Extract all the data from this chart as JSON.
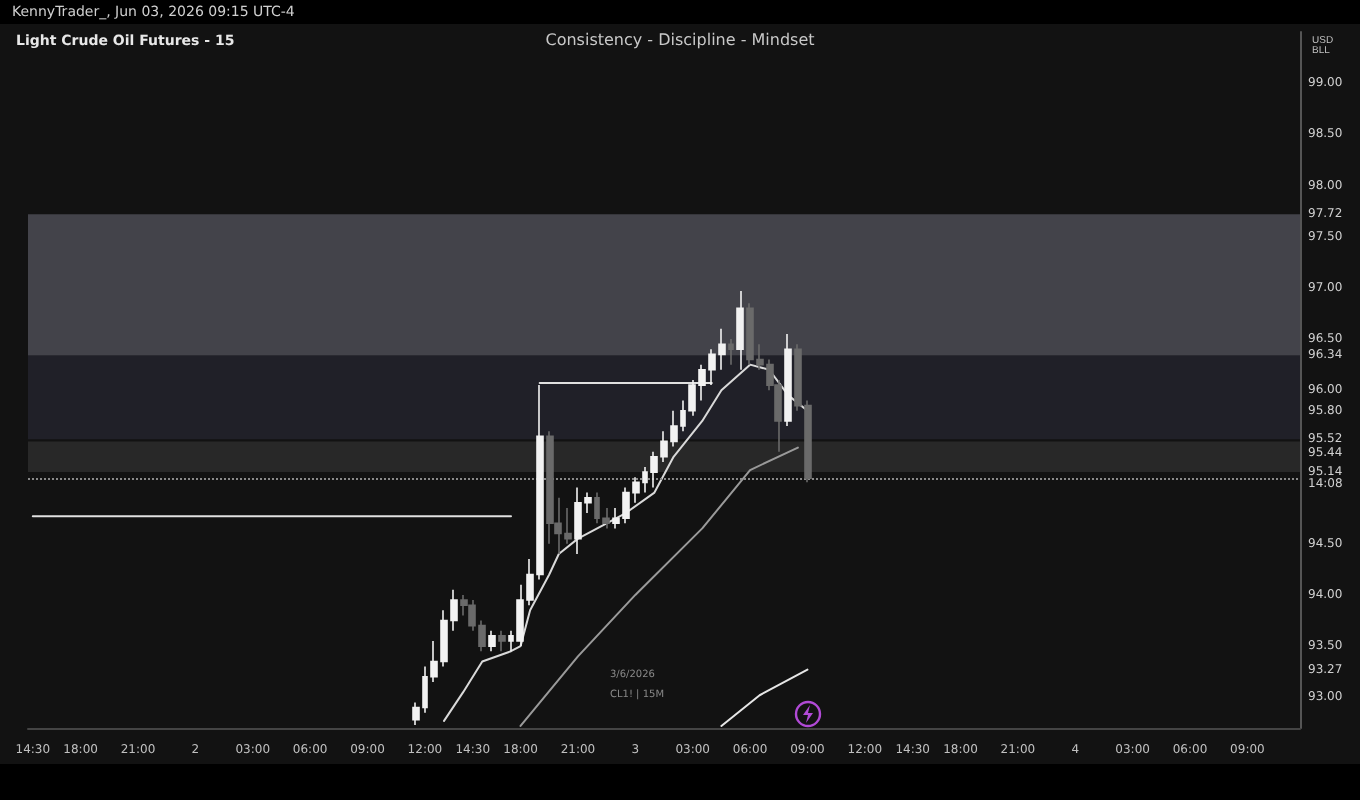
{
  "chart_data": {
    "type": "candlestick",
    "title": "Light Crude Oil Futures - 15",
    "subtitle": "Consistency - Discipline - Mindset",
    "ylabel": "USD\nBLL",
    "annotations": [
      "KennyTrader_, Jun 03, 2026 09:15 UTC-4",
      "3/6/2026",
      "CL1! | 15M"
    ],
    "categories": [
      "14:30",
      null,
      null,
      null,
      null,
      "18:00",
      null,
      null,
      null,
      null,
      null,
      "21:00",
      null,
      null,
      null,
      null,
      null,
      "2",
      null,
      null,
      null,
      null,
      null,
      "03:00",
      null,
      null,
      null,
      null,
      null,
      "06:00",
      null,
      null,
      null,
      null,
      null,
      "09:00",
      null,
      null,
      null,
      null,
      null,
      "12:00",
      null,
      null,
      null,
      null,
      "14:30",
      null,
      null,
      null,
      null,
      "18:00",
      null,
      null,
      null,
      null,
      null,
      "21:00",
      null,
      null,
      null,
      null,
      null,
      "3",
      null,
      null,
      null,
      null,
      null,
      "03:00",
      null,
      null,
      null,
      null,
      null,
      "06:00",
      null,
      null,
      null,
      null,
      null,
      "09:00",
      null,
      null,
      null,
      null,
      null,
      "12:00",
      null,
      null,
      null,
      null,
      "14:30",
      null,
      null,
      null,
      null,
      "18:00",
      null,
      null,
      null,
      null,
      null,
      "21:00",
      null,
      null,
      null,
      null,
      null,
      "4",
      null,
      null,
      null,
      null,
      null,
      "03:00",
      null,
      null,
      null,
      null,
      null,
      "06:00",
      null,
      null,
      null,
      null,
      null,
      "09:00",
      null,
      null,
      null,
      null,
      null
    ],
    "ohlc": [
      null,
      null,
      null,
      null,
      null,
      null,
      null,
      null,
      null,
      null,
      null,
      null,
      null,
      null,
      null,
      null,
      null,
      null,
      null,
      null,
      null,
      null,
      null,
      null,
      null,
      null,
      null,
      null,
      null,
      null,
      null,
      null,
      null,
      null,
      null,
      null,
      null,
      null,
      null,
      null,
      [
        92.78,
        92.95,
        92.73,
        92.9
      ],
      [
        92.9,
        93.3,
        92.85,
        93.2
      ],
      [
        93.2,
        93.55,
        93.15,
        93.35
      ],
      [
        93.35,
        93.85,
        93.3,
        93.75
      ],
      [
        93.75,
        94.05,
        93.65,
        93.95
      ],
      [
        93.95,
        94.0,
        93.8,
        93.9
      ],
      [
        93.9,
        93.95,
        93.65,
        93.7
      ],
      [
        93.7,
        93.75,
        93.45,
        93.5
      ],
      [
        93.5,
        93.65,
        93.45,
        93.6
      ],
      [
        93.6,
        93.65,
        93.45,
        93.55
      ],
      [
        93.55,
        93.65,
        93.45,
        93.6
      ],
      [
        93.55,
        94.1,
        93.5,
        93.95
      ],
      [
        93.95,
        94.35,
        93.9,
        94.2
      ],
      [
        94.2,
        96.05,
        94.15,
        95.55
      ],
      [
        95.55,
        95.6,
        94.5,
        94.7
      ],
      [
        94.7,
        94.95,
        94.4,
        94.6
      ],
      [
        94.6,
        94.85,
        94.5,
        94.55
      ],
      [
        94.55,
        95.05,
        94.4,
        94.9
      ],
      [
        94.9,
        95.0,
        94.8,
        94.95
      ],
      [
        94.95,
        95.0,
        94.7,
        94.75
      ],
      [
        94.75,
        94.85,
        94.65,
        94.7
      ],
      [
        94.7,
        94.85,
        94.65,
        94.75
      ],
      [
        94.75,
        95.05,
        94.7,
        95.0
      ],
      [
        95.0,
        95.15,
        94.9,
        95.1
      ],
      [
        95.1,
        95.25,
        95.0,
        95.2
      ],
      [
        95.2,
        95.4,
        95.05,
        95.35
      ],
      [
        95.35,
        95.6,
        95.3,
        95.5
      ],
      [
        95.5,
        95.8,
        95.45,
        95.65
      ],
      [
        95.65,
        95.9,
        95.6,
        95.8
      ],
      [
        95.8,
        96.1,
        95.75,
        96.05
      ],
      [
        96.05,
        96.25,
        95.9,
        96.2
      ],
      [
        96.2,
        96.4,
        96.05,
        96.35
      ],
      [
        96.35,
        96.6,
        96.2,
        96.45
      ],
      [
        96.45,
        96.5,
        96.25,
        96.4
      ],
      [
        96.4,
        96.97,
        96.2,
        96.8
      ],
      [
        96.8,
        96.85,
        96.25,
        96.3
      ],
      [
        96.3,
        96.45,
        96.2,
        96.25
      ],
      [
        96.25,
        96.3,
        96.0,
        96.05
      ],
      [
        96.05,
        96.1,
        95.4,
        95.7
      ],
      [
        95.7,
        96.55,
        95.65,
        96.4
      ],
      [
        96.4,
        96.45,
        95.8,
        95.85
      ],
      [
        95.85,
        95.9,
        95.1,
        95.14
      ],
      null,
      null,
      null,
      null,
      null,
      null,
      null,
      null,
      null,
      null,
      null,
      null,
      null,
      null,
      null,
      null,
      null,
      null,
      null,
      null,
      null,
      null,
      null,
      null,
      null,
      null,
      null,
      null,
      null,
      null,
      null,
      null,
      null,
      null,
      null,
      null,
      null,
      null,
      null,
      null,
      null,
      null,
      null,
      null,
      null,
      null,
      null,
      null,
      null,
      null,
      null
    ],
    "colors": [
      null,
      null,
      null,
      null,
      null,
      null,
      null,
      null,
      null,
      null,
      null,
      null,
      null,
      null,
      null,
      null,
      null,
      null,
      null,
      null,
      null,
      null,
      null,
      null,
      null,
      null,
      null,
      null,
      null,
      null,
      null,
      null,
      null,
      null,
      null,
      null,
      null,
      null,
      null,
      null,
      "#f2f2f2",
      "#f2f2f2",
      "#f2f2f2",
      "#f2f2f2",
      "#f2f2f2",
      "#6a6a6a",
      "#6a6a6a",
      "#6a6a6a",
      "#f2f2f2",
      "#6a6a6a",
      "#f2f2f2",
      "#f2f2f2",
      "#f2f2f2",
      "#f2f2f2",
      "#6a6a6a",
      "#6a6a6a",
      "#6a6a6a",
      "#f2f2f2",
      "#f2f2f2",
      "#6a6a6a",
      "#6a6a6a",
      "#f2f2f2",
      "#f2f2f2",
      "#f2f2f2",
      "#f2f2f2",
      "#f2f2f2",
      "#f2f2f2",
      "#f2f2f2",
      "#f2f2f2",
      "#f2f2f2",
      "#f2f2f2",
      "#f2f2f2",
      "#f2f2f2",
      "#6a6a6a",
      "#f2f2f2",
      "#6a6a6a",
      "#6a6a6a",
      "#6a6a6a",
      "#6a6a6a",
      "#f2f2f2",
      "#6a6a6a",
      "#6a6a6a",
      null,
      null,
      null,
      null,
      null,
      null,
      null,
      null,
      null,
      null,
      null,
      null,
      null,
      null,
      null,
      null,
      null,
      null,
      null,
      null,
      null,
      null,
      null,
      null,
      null,
      null,
      null,
      null,
      null,
      null,
      null,
      null,
      null,
      null,
      null,
      null,
      null,
      null,
      null,
      null,
      null,
      null,
      null,
      null,
      null,
      null,
      null,
      null,
      null,
      null,
      null
    ],
    "series": [
      {
        "type": "line",
        "color": "#d9d9d9",
        "values": [
          null,
          null,
          null,
          null,
          null,
          null,
          null,
          null,
          null,
          null,
          null,
          null,
          null,
          null,
          null,
          null,
          null,
          null,
          null,
          null,
          null,
          null,
          null,
          null,
          null,
          null,
          null,
          null,
          null,
          null,
          null,
          null,
          null,
          null,
          null,
          null,
          null,
          null,
          null,
          null,
          null,
          null,
          null,
          92.77,
          null,
          93.05,
          null,
          93.35,
          null,
          null,
          93.45,
          93.5,
          93.85,
          null,
          94.2,
          94.4,
          null,
          94.55,
          null,
          null,
          94.7,
          null,
          94.8,
          null,
          null,
          95.0,
          null,
          95.35,
          null,
          null,
          95.7,
          null,
          96.0,
          null,
          null,
          96.25,
          null,
          96.2,
          null,
          95.95,
          null,
          95.8,
          null,
          null,
          null,
          null,
          null,
          null,
          null,
          null,
          null,
          null,
          null,
          null,
          null,
          null,
          null,
          null,
          null,
          null,
          null,
          null,
          null,
          null,
          null,
          null,
          null,
          null,
          null,
          null,
          null,
          null,
          null,
          null,
          null,
          null,
          null,
          null,
          null,
          null,
          null,
          null,
          null,
          null,
          null,
          null,
          null,
          null,
          null,
          null,
          null,
          null,
          null
        ]
      },
      {
        "type": "line",
        "color": "#9a9a9a",
        "values": [
          null,
          null,
          null,
          null,
          null,
          null,
          null,
          null,
          null,
          null,
          null,
          null,
          null,
          null,
          null,
          null,
          null,
          null,
          null,
          null,
          null,
          null,
          null,
          null,
          null,
          null,
          null,
          null,
          null,
          null,
          null,
          null,
          null,
          null,
          null,
          null,
          null,
          null,
          null,
          null,
          null,
          null,
          null,
          null,
          null,
          null,
          null,
          null,
          null,
          null,
          null,
          92.72,
          null,
          null,
          null,
          null,
          null,
          93.4,
          null,
          null,
          null,
          null,
          null,
          94.0,
          null,
          null,
          null,
          null,
          null,
          null,
          94.65,
          null,
          null,
          null,
          null,
          95.22,
          null,
          null,
          null,
          null,
          95.44,
          null,
          null,
          null,
          null,
          null,
          null,
          null,
          null,
          null,
          null,
          null,
          null,
          null,
          null,
          null,
          null,
          null,
          null,
          null,
          null,
          null,
          null,
          null,
          null,
          null,
          null,
          null,
          null,
          null,
          null,
          null,
          null,
          null,
          null,
          null,
          null,
          null,
          null,
          null,
          null,
          null,
          null,
          null,
          null,
          null,
          null,
          null,
          null,
          null,
          null,
          null,
          null
        ]
      },
      {
        "type": "line",
        "color": "#e6e6e6",
        "values": [
          null,
          null,
          null,
          null,
          null,
          null,
          null,
          null,
          null,
          null,
          null,
          null,
          null,
          null,
          null,
          null,
          null,
          null,
          null,
          null,
          null,
          null,
          null,
          null,
          null,
          null,
          null,
          null,
          null,
          null,
          null,
          null,
          null,
          null,
          null,
          null,
          null,
          null,
          null,
          null,
          null,
          null,
          null,
          null,
          null,
          null,
          null,
          null,
          null,
          null,
          null,
          null,
          null,
          null,
          null,
          null,
          null,
          null,
          null,
          null,
          null,
          null,
          null,
          null,
          null,
          null,
          null,
          null,
          null,
          null,
          null,
          null,
          92.72,
          null,
          null,
          null,
          93.02,
          null,
          null,
          null,
          null,
          93.27,
          null,
          null,
          null,
          null,
          null,
          null,
          null,
          null,
          null,
          null,
          null,
          null,
          null,
          null,
          null,
          null,
          null,
          null,
          null,
          null,
          null,
          null,
          null,
          null,
          null,
          null,
          null,
          null,
          null,
          null,
          null,
          null,
          null,
          null,
          null,
          null,
          null,
          null,
          null,
          null,
          null,
          null,
          null,
          null,
          null,
          null,
          null,
          null,
          null,
          null,
          null
        ]
      },
      {
        "type": "line",
        "color": "#e0e0e0",
        "values": [
          94.77,
          null,
          null,
          null,
          null,
          null,
          null,
          null,
          null,
          null,
          null,
          null,
          null,
          null,
          null,
          null,
          null,
          null,
          null,
          null,
          null,
          null,
          null,
          null,
          null,
          null,
          null,
          null,
          null,
          null,
          null,
          null,
          null,
          null,
          null,
          null,
          null,
          null,
          null,
          null,
          null,
          null,
          null,
          null,
          null,
          null,
          null,
          null,
          null,
          null,
          94.77,
          null,
          null,
          null,
          null,
          null,
          null,
          null,
          null,
          null,
          null,
          null,
          null,
          null,
          null,
          null,
          null,
          null,
          null,
          null,
          null,
          null,
          null,
          null,
          null,
          null,
          null,
          null,
          null,
          null,
          null,
          null,
          null,
          null,
          null,
          null,
          null,
          null,
          null,
          null,
          null,
          null,
          null,
          null,
          null,
          null,
          null,
          null,
          null,
          null,
          null,
          null,
          null,
          null,
          null,
          null,
          null,
          null,
          null,
          null,
          null,
          null,
          null,
          null,
          null,
          null,
          null,
          null,
          null,
          null,
          null,
          null,
          null,
          null,
          null,
          null,
          null,
          null,
          null,
          null,
          null,
          null,
          null
        ]
      },
      {
        "type": "line",
        "color": "#e0e0e0",
        "values": [
          null,
          null,
          null,
          null,
          null,
          null,
          null,
          null,
          null,
          null,
          null,
          null,
          null,
          null,
          null,
          null,
          null,
          null,
          null,
          null,
          null,
          null,
          null,
          null,
          null,
          null,
          null,
          null,
          null,
          null,
          null,
          null,
          null,
          null,
          null,
          null,
          null,
          null,
          null,
          null,
          null,
          null,
          null,
          null,
          null,
          null,
          null,
          null,
          null,
          null,
          null,
          null,
          null,
          96.07,
          null,
          null,
          null,
          null,
          null,
          null,
          null,
          null,
          null,
          null,
          null,
          null,
          null,
          null,
          null,
          null,
          null,
          96.07,
          null,
          null,
          null,
          null,
          null,
          null,
          null,
          null,
          null,
          null,
          null,
          null,
          null,
          null,
          null,
          null,
          null,
          null,
          null,
          null,
          null,
          null,
          null,
          null,
          null,
          null,
          null,
          null,
          null,
          null,
          null,
          null,
          null,
          null,
          null,
          null,
          null,
          null,
          null,
          null,
          null,
          null,
          null,
          null,
          null,
          null,
          null,
          null,
          null,
          null,
          null,
          null,
          null,
          null,
          null,
          null,
          null,
          null,
          null,
          null,
          null
        ]
      }
    ],
    "ylim": [
      92.7,
      99.5
    ],
    "yticks": [
      {
        "value": 93,
        "label": "93.00"
      },
      {
        "value": 93.27,
        "label": "93.27"
      },
      {
        "value": 93.5,
        "label": "93.50"
      },
      {
        "value": 94,
        "label": "94.00"
      },
      {
        "value": 94.5,
        "label": "94.50"
      },
      {
        "value": 95.14,
        "label": "95.14\n14:08"
      },
      {
        "value": 95.44,
        "label": "95.44"
      },
      {
        "value": 95.52,
        "label": "95.52"
      },
      {
        "value": 95.8,
        "label": "95.80"
      },
      {
        "value": 96,
        "label": "96.00"
      },
      {
        "value": 96.34,
        "label": "96.34"
      },
      {
        "value": 96.5,
        "label": "96.50"
      },
      {
        "value": 97,
        "label": "97.00"
      },
      {
        "value": 97.5,
        "label": "97.50"
      },
      {
        "value": 97.72,
        "label": "97.72"
      },
      {
        "value": 98,
        "label": "98.00"
      },
      {
        "value": 98.5,
        "label": "98.50"
      },
      {
        "value": 99,
        "label": "99.00"
      }
    ],
    "ref_lines": [
      {
        "axis": "y",
        "value": 95.14,
        "color": "#8a8a8a",
        "line_style": "dotted"
      }
    ],
    "bands": [
      {
        "axis": "y",
        "from": 96.34,
        "to": 97.72,
        "color": "#6c6c78"
      },
      {
        "axis": "y",
        "from": 95.52,
        "to": 96.34,
        "color": "#2c2c3a"
      },
      {
        "axis": "y",
        "from": 95.2,
        "to": 95.5,
        "color": "#3a3a3a"
      }
    ],
    "marker": "none",
    "grid": false
  }
}
